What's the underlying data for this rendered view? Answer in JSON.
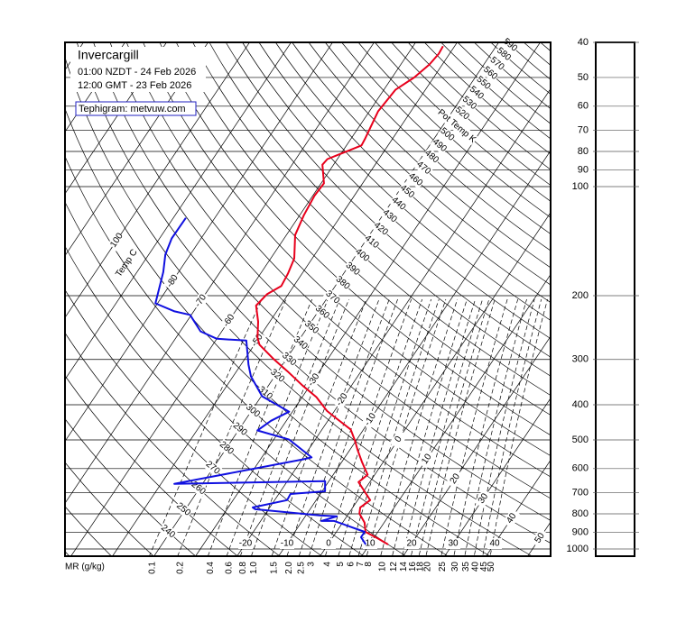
{
  "chart_data": {
    "type": "tephigram",
    "title": "Invercargill",
    "subtitle": [
      "01:00 NZDT - 24 Feb 2026",
      "12:00 GMT - 23 Feb 2026"
    ],
    "source": "Tephigram: metvuw.com",
    "isotherm_title": "Temp C",
    "isentrope_title": "Pot Temp K",
    "mixing_ratio_title": "MR (g/kg)",
    "log_scale": true,
    "ylim": [
      1047,
      40
    ],
    "yticks": [
      40,
      50,
      60,
      70,
      80,
      90,
      100,
      200,
      300,
      400,
      500,
      600,
      700,
      800,
      900,
      1000
    ],
    "isotherms": [
      -100,
      -80,
      -70,
      -60,
      -50,
      -40,
      -30,
      -20,
      -10,
      0,
      10,
      20,
      30,
      40,
      50
    ],
    "surface_isotherms": [
      -20,
      -10,
      0,
      10,
      20,
      30,
      40
    ],
    "isentropes": [
      240,
      250,
      260,
      270,
      280,
      290,
      300,
      310,
      320,
      330,
      340,
      350,
      360,
      370,
      380,
      390,
      400,
      410,
      420,
      430,
      440,
      450,
      460,
      470,
      480,
      490,
      500,
      520,
      530,
      540,
      550,
      560,
      570,
      580,
      590
    ],
    "mixing_ratios": [
      0.1,
      0.2,
      0.4,
      0.6,
      0.8,
      {
        "value": 1,
        "label": "1.0"
      },
      1.5,
      {
        "value": 2,
        "label": "2.0"
      },
      2.5,
      3,
      4,
      5,
      6,
      7,
      8,
      10,
      12,
      14,
      16,
      18,
      20,
      25,
      30,
      35,
      40,
      45,
      50
    ],
    "series": [
      {
        "color": "#e8001c",
        "pressure": [
          972,
          939,
          897,
          846,
          799,
          768,
          733,
          693,
          654,
          624,
          576,
          535,
          502,
          468,
          437,
          416,
          381,
          354,
          323,
          298,
          273,
          261,
          236,
          213,
          198,
          188,
          174,
          158,
          136,
          120,
          106,
          98,
          87,
          84,
          77,
          74,
          62,
          54,
          50,
          46,
          43,
          41
        ],
        "values": [
          14.5,
          11.4,
          7.0,
          5.3,
          2.6,
          1.8,
          3.0,
          0.2,
          -2.7,
          -1.7,
          -5.1,
          -8.0,
          -10.3,
          -13.1,
          -18.2,
          -21.8,
          -26.6,
          -31.8,
          -37.8,
          -43.3,
          -48.8,
          -50.4,
          -52.8,
          -55.9,
          -55.1,
          -53.0,
          -53.4,
          -54.3,
          -57.9,
          -59.0,
          -59.6,
          -59.3,
          -62.7,
          -62.4,
          -56.4,
          -56.6,
          -57.9,
          -57.2,
          -54.7,
          -53.1,
          -52.6,
          -52.8
        ]
      },
      {
        "color": "#1010e0",
        "pressure": [
          972,
          928,
          897,
          837,
          837,
          813,
          808,
          777,
          768,
          733,
          705,
          693,
          650,
          661,
          566,
          559,
          499,
          471,
          443,
          418,
          379,
          334,
          310,
          266,
          263,
          251,
          226,
          221,
          210,
          172,
          154,
          139,
          122
        ],
        "values": [
          9.1,
          6.8,
          6.8,
          -2.3,
          -5.4,
          -2.4,
          -6.7,
          -23.2,
          -24.1,
          -17.0,
          -17.2,
          -9.3,
          -10.9,
          -46.8,
          -19.8,
          -18.0,
          -26.3,
          -35.4,
          -33.7,
          -30.8,
          -39.8,
          -45.7,
          -48.2,
          -52.6,
          -60.0,
          -65.1,
          -70.3,
          -74.6,
          -80.5,
          -83.7,
          -86.0,
          -87.1,
          -87.0
        ]
      }
    ]
  }
}
